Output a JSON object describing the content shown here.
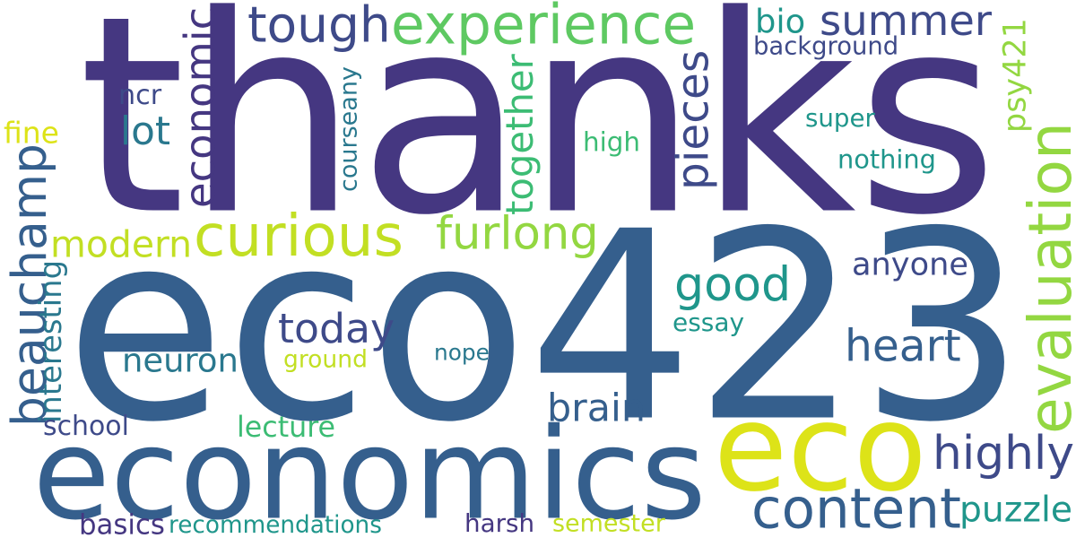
{
  "words": [
    {
      "text": "thanks",
      "color": "#453781",
      "rotated": false
    },
    {
      "text": "eco423",
      "color": "#355f8d",
      "rotated": false
    },
    {
      "text": "economics",
      "color": "#355f8d",
      "rotated": false
    },
    {
      "text": "eco",
      "color": "#dde318",
      "rotated": false
    },
    {
      "text": "experience",
      "color": "#5ec962",
      "rotated": false
    },
    {
      "text": "tough",
      "color": "#3e4a89",
      "rotated": false
    },
    {
      "text": "summer",
      "color": "#3e4a89",
      "rotated": false
    },
    {
      "text": "curious",
      "color": "#c2df23",
      "rotated": false
    },
    {
      "text": "economic",
      "color": "#453781",
      "rotated": true
    },
    {
      "text": "beauchamp",
      "color": "#355f8d",
      "rotated": true
    },
    {
      "text": "evaluation",
      "color": "#93d741",
      "rotated": true
    },
    {
      "text": "content",
      "color": "#355f8d",
      "rotated": false
    },
    {
      "text": "good",
      "color": "#1f968b",
      "rotated": false
    },
    {
      "text": "furlong",
      "color": "#93d741",
      "rotated": false
    },
    {
      "text": "pieces",
      "color": "#3e4a89",
      "rotated": true
    },
    {
      "text": "modern",
      "color": "#c2df23",
      "rotated": false
    },
    {
      "text": "today",
      "color": "#3e4a89",
      "rotated": false
    },
    {
      "text": "heart",
      "color": "#355f8d",
      "rotated": false
    },
    {
      "text": "highly",
      "color": "#3e4a89",
      "rotated": false
    },
    {
      "text": "together",
      "color": "#3cbc74",
      "rotated": true
    },
    {
      "text": "anyone",
      "color": "#3e4a89",
      "rotated": false
    },
    {
      "text": "neuron",
      "color": "#2a788e",
      "rotated": false
    },
    {
      "text": "brain",
      "color": "#355f8d",
      "rotated": false
    },
    {
      "text": "puzzle",
      "color": "#1f968b",
      "rotated": false
    },
    {
      "text": "lot",
      "color": "#2a788e",
      "rotated": false
    },
    {
      "text": "psy421",
      "color": "#93d741",
      "rotated": true
    },
    {
      "text": "bio",
      "color": "#1f968b",
      "rotated": false
    },
    {
      "text": "background",
      "color": "#3e4a89",
      "rotated": false
    },
    {
      "text": "courseany",
      "color": "#2a788e",
      "rotated": true
    },
    {
      "text": "interesting",
      "color": "#2a788e",
      "rotated": true
    },
    {
      "text": "ncr",
      "color": "#3e4a89",
      "rotated": false
    },
    {
      "text": "fine",
      "color": "#dde318",
      "rotated": false
    },
    {
      "text": "high",
      "color": "#3cbc74",
      "rotated": false
    },
    {
      "text": "super",
      "color": "#1f968b",
      "rotated": false
    },
    {
      "text": "nothing",
      "color": "#1f968b",
      "rotated": false
    },
    {
      "text": "essay",
      "color": "#1f968b",
      "rotated": false
    },
    {
      "text": "ground",
      "color": "#c2df23",
      "rotated": false
    },
    {
      "text": "nope",
      "color": "#2a788e",
      "rotated": false
    },
    {
      "text": "school",
      "color": "#3e4a89",
      "rotated": false
    },
    {
      "text": "lecture",
      "color": "#3cbc74",
      "rotated": false
    },
    {
      "text": "basics",
      "color": "#453781",
      "rotated": false
    },
    {
      "text": "recommendations",
      "color": "#1f968b",
      "rotated": false
    },
    {
      "text": "harsh",
      "color": "#453781",
      "rotated": false
    },
    {
      "text": "semester",
      "color": "#c2df23",
      "rotated": false
    }
  ]
}
